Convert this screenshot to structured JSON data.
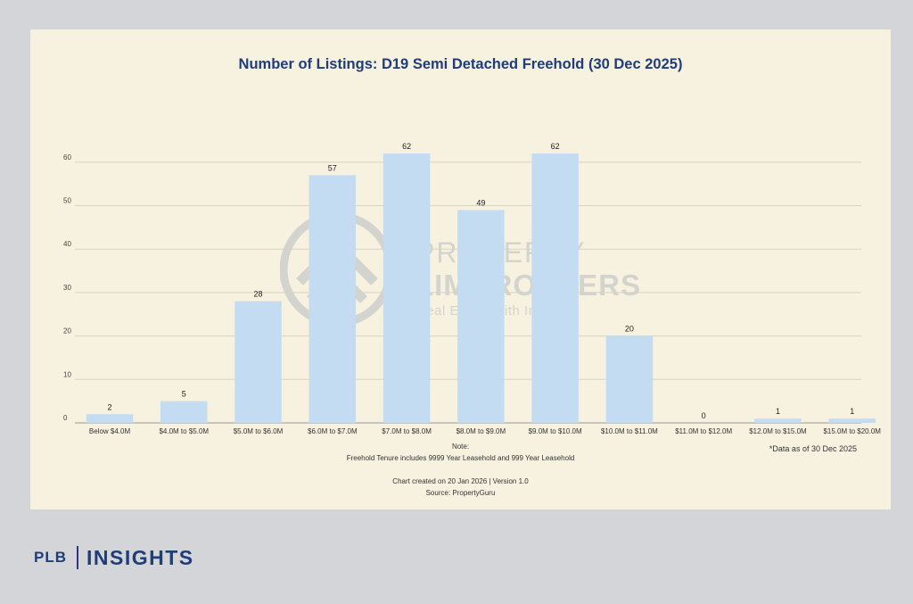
{
  "chart_data": {
    "type": "bar",
    "title": "Number of Listings: D19 Semi Detached Freehold (30 Dec 2025)",
    "categories": [
      "Below $4.0M",
      "$4.0M to $5.0M",
      "$5.0M to $6.0M",
      "$6.0M to $7.0M",
      "$7.0M to $8.0M",
      "$8.0M to $9.0M",
      "$9.0M to $10.0M",
      "$10.0M to $11.0M",
      "$11.0M to $12.0M",
      "$12.0M to $15.0M",
      "$15.0M to $20.0M"
    ],
    "values": [
      2,
      5,
      28,
      57,
      62,
      49,
      62,
      20,
      0,
      1,
      1
    ],
    "ylim": [
      0,
      60
    ],
    "yticks": [
      0,
      10,
      20,
      30,
      40,
      50,
      60
    ],
    "grid": true,
    "bar_color": "#c4dcf2",
    "data_labels": true
  },
  "footnote": "*Data as of 30 Dec 2025",
  "note_heading": "Note:",
  "note_text": "Freehold Tenure includes 9999 Year Leasehold and 999 Year Leasehold",
  "created": "Chart created on 20 Jan 2026 | Version 1.0",
  "source": "Source: PropertyGuru",
  "watermark": {
    "line1": "PROPERTY",
    "line2": "LIMBROTHERS",
    "line3": "Real Estate with Integrity"
  },
  "brand": {
    "left": "PLB",
    "right": "INSIGHTS",
    "color": "#1e3d7a"
  }
}
